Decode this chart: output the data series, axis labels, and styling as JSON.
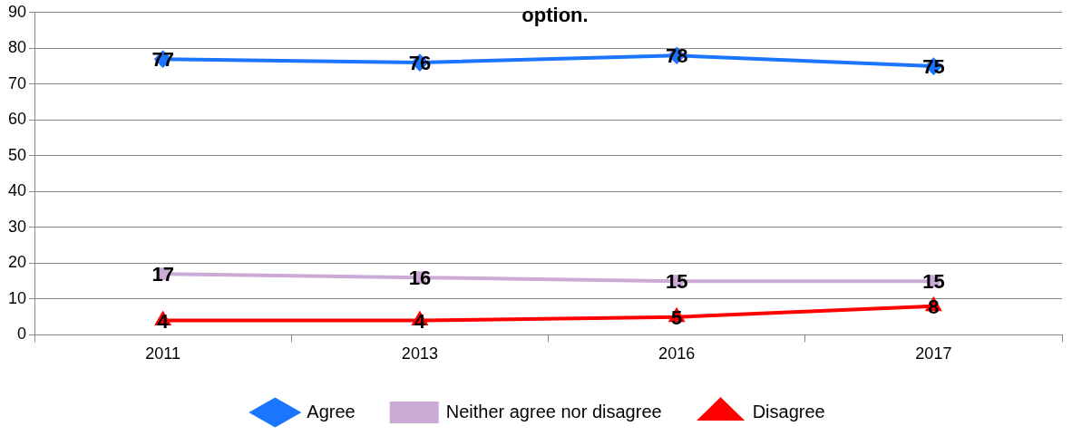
{
  "chart_data": {
    "type": "line",
    "title": "option.",
    "categories": [
      "2011",
      "2013",
      "2016",
      "2017"
    ],
    "series": [
      {
        "name": "Agree",
        "color": "#1a75ff",
        "values": [
          77,
          76,
          78,
          75
        ],
        "marker": "diamond"
      },
      {
        "name": "Neither agree nor disagree",
        "color": "#ccaad6",
        "values": [
          17,
          16,
          15,
          15
        ],
        "marker": "square"
      },
      {
        "name": "Disagree",
        "color": "#ff0000",
        "values": [
          4,
          4,
          5,
          8
        ],
        "marker": "triangle"
      }
    ],
    "ylim": [
      0,
      90
    ],
    "yticks": [
      0,
      10,
      20,
      30,
      40,
      50,
      60,
      70,
      80,
      90
    ],
    "grid": "y",
    "legend": "bottom",
    "data_labels": true,
    "line_style": "solid"
  }
}
